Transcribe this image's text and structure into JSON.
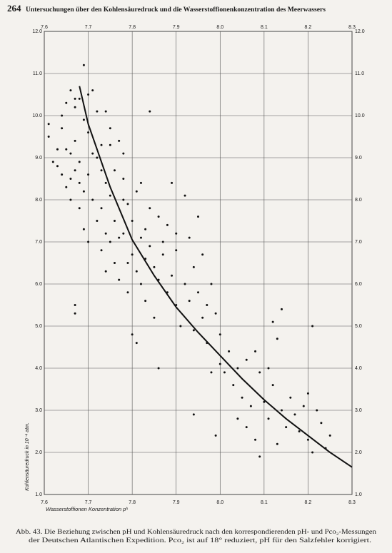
{
  "page_number": "264",
  "running_head": "Untersuchungen über den Kohlensäuredruck und die Wasserstoffionenkonzentration des Meerwassers",
  "chart_data": {
    "type": "scatter",
    "xlabel": "Wasserstoffionen Konzentration pʰ",
    "ylabel": "Kohlensäuredruck in 10⁻⁴ atm.",
    "caption": [
      "Abb. 43. Die Beziehung zwischen pH und Kohlensäuredruck nach den korrespondierenden pH- und Pco₂-Messungen",
      "der Deutschen Atlantischen Expedition.  Pco₂ ist auf 18° reduziert, pH für den Salzfehler korrigiert."
    ],
    "xlim": [
      7.6,
      8.3
    ],
    "ylim": [
      1,
      12
    ],
    "xticks": [
      7.6,
      7.7,
      7.8,
      7.9,
      {
        "value": 8,
        "label": "8.0"
      },
      8.1,
      8.2,
      8.3
    ],
    "yticks": [
      {
        "value": 1,
        "label": "1.0"
      },
      {
        "value": 2,
        "label": "2.0"
      },
      {
        "value": 3,
        "label": "3.0"
      },
      {
        "value": 4,
        "label": "4.0"
      },
      {
        "value": 5,
        "label": "5.0"
      },
      {
        "value": 6,
        "label": "6.0"
      },
      {
        "value": 7,
        "label": "7.0"
      },
      {
        "value": 8,
        "label": "8.0"
      },
      {
        "value": 9,
        "label": "9.0"
      },
      {
        "value": 10,
        "label": "10.0"
      },
      {
        "value": 11,
        "label": "11.0"
      },
      {
        "value": 12,
        "label": "12.0"
      }
    ],
    "grid": true,
    "color": "#111111",
    "x": [
      7.61,
      7.61,
      7.62,
      7.63,
      7.63,
      7.64,
      7.64,
      7.64,
      7.65,
      7.65,
      7.65,
      7.66,
      7.66,
      7.66,
      7.66,
      7.67,
      7.67,
      7.67,
      7.67,
      7.68,
      7.68,
      7.68,
      7.68,
      7.69,
      7.69,
      7.69,
      7.69,
      7.7,
      7.7,
      7.7,
      7.7,
      7.71,
      7.71,
      7.71,
      7.72,
      7.72,
      7.72,
      7.73,
      7.73,
      7.73,
      7.73,
      7.74,
      7.74,
      7.74,
      7.74,
      7.75,
      7.75,
      7.75,
      7.75,
      7.76,
      7.76,
      7.76,
      7.77,
      7.77,
      7.77,
      7.78,
      7.78,
      7.78,
      7.78,
      7.79,
      7.79,
      7.79,
      7.8,
      7.8,
      7.8,
      7.81,
      7.81,
      7.81,
      7.82,
      7.82,
      7.82,
      7.83,
      7.83,
      7.83,
      7.84,
      7.84,
      7.84,
      7.85,
      7.85,
      7.86,
      7.86,
      7.86,
      7.87,
      7.87,
      7.88,
      7.88,
      7.89,
      7.89,
      7.9,
      7.9,
      7.9,
      7.91,
      7.92,
      7.92,
      7.93,
      7.93,
      7.94,
      7.94,
      7.95,
      7.95,
      7.96,
      7.96,
      7.97,
      7.97,
      7.98,
      7.98,
      7.99,
      7.99,
      8.0,
      8.0,
      8.01,
      8.02,
      8.03,
      8.04,
      8.04,
      8.05,
      8.06,
      8.06,
      8.07,
      8.08,
      8.08,
      8.09,
      8.09,
      8.1,
      8.11,
      8.11,
      8.12,
      8.12,
      8.13,
      8.13,
      8.14,
      8.14,
      8.15,
      8.16,
      8.17,
      8.18,
      8.19,
      8.2,
      8.2,
      8.21,
      8.21,
      8.22,
      8.23,
      8.24,
      8.25,
      7.67,
      7.67,
      7.94
    ],
    "values": [
      9.8,
      9.5,
      8.9,
      8.8,
      9.2,
      8.6,
      9.7,
      10.0,
      8.3,
      9.2,
      10.3,
      8.5,
      9.1,
      10.6,
      8.0,
      8.7,
      9.4,
      10.2,
      10.4,
      7.8,
      8.4,
      8.9,
      10.4,
      7.3,
      9.9,
      11.2,
      8.2,
      7.0,
      8.6,
      9.6,
      10.5,
      9.1,
      10.6,
      8.0,
      9.0,
      7.5,
      10.1,
      8.7,
      6.8,
      7.8,
      9.3,
      8.4,
      7.2,
      10.1,
      6.3,
      9.3,
      8.1,
      7.0,
      9.7,
      6.5,
      8.7,
      7.5,
      9.4,
      7.1,
      6.1,
      8.0,
      7.2,
      8.5,
      9.1,
      6.5,
      7.9,
      5.8,
      7.5,
      6.7,
      4.8,
      8.2,
      6.3,
      4.6,
      7.1,
      8.4,
      6.0,
      7.3,
      6.6,
      5.6,
      7.8,
      6.9,
      10.1,
      6.4,
      5.2,
      7.6,
      6.1,
      4.0,
      7.0,
      6.7,
      7.4,
      5.8,
      6.2,
      8.4,
      6.8,
      5.5,
      7.2,
      5.0,
      6.0,
      8.1,
      5.6,
      7.1,
      4.9,
      6.4,
      7.6,
      5.8,
      5.2,
      6.7,
      4.6,
      5.5,
      6.0,
      3.9,
      5.3,
      2.4,
      4.1,
      4.8,
      3.9,
      4.4,
      3.6,
      2.8,
      4.0,
      3.3,
      4.2,
      2.6,
      3.1,
      4.4,
      2.3,
      3.9,
      1.9,
      3.2,
      4.0,
      2.8,
      5.1,
      3.6,
      2.2,
      4.7,
      3.0,
      5.4,
      2.6,
      3.3,
      2.9,
      2.5,
      3.1,
      2.3,
      3.4,
      5.0,
      2.0,
      3.0,
      2.7,
      2.1,
      2.4,
      5.5,
      5.3,
      2.9
    ],
    "curve": {
      "x": [
        7.68,
        7.7,
        7.75,
        7.8,
        7.85,
        7.9,
        7.95,
        8.0,
        8.05,
        8.1,
        8.15,
        8.2,
        8.25,
        8.3
      ],
      "values": [
        10.7,
        9.8,
        8.3,
        7.05,
        6.2,
        5.45,
        4.85,
        4.3,
        3.75,
        3.25,
        2.8,
        2.4,
        2.0,
        1.65
      ]
    }
  }
}
